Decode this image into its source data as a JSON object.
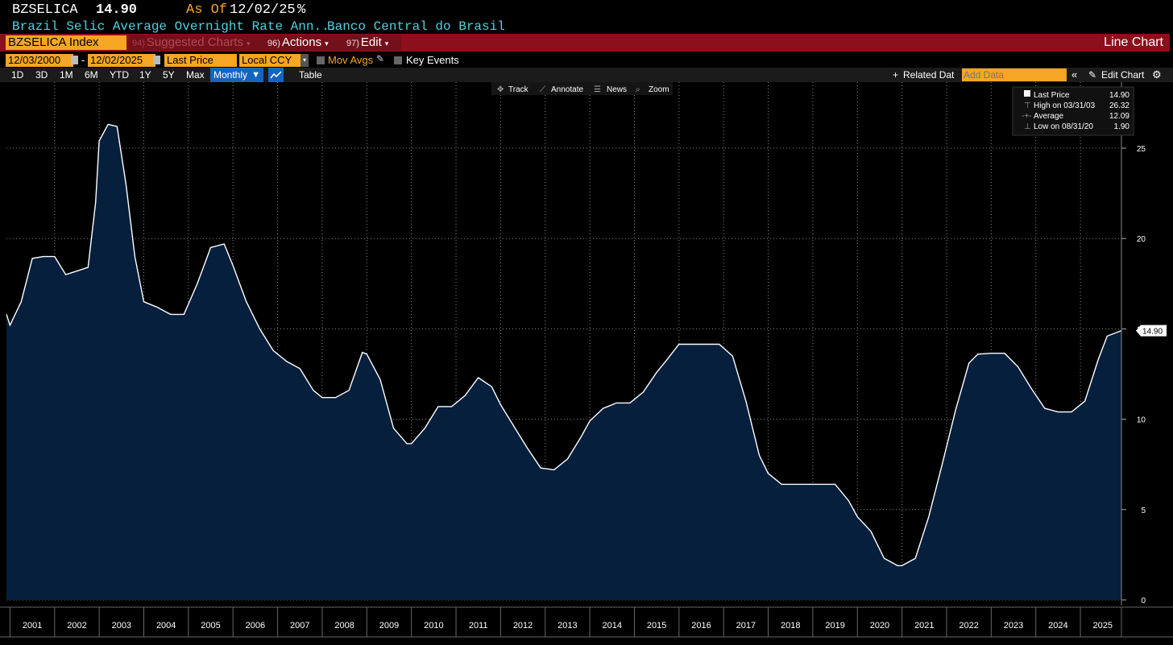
{
  "header": {
    "ticker": "BZSELICA",
    "price": "14.90",
    "as_of_label": "As Of",
    "as_of_date": "12/02/25",
    "unit": "%",
    "description": "Brazil Selic Average Overnight Rate Ann...",
    "source": "Banco Central do Brasil"
  },
  "toolbar": {
    "security": "BZSELICA Index",
    "suggested_charts": {
      "num": "94)",
      "label": "Suggested Charts"
    },
    "actions": {
      "num": "96)",
      "label": "Actions"
    },
    "edit": {
      "num": "97)",
      "label": "Edit"
    },
    "chart_type": "Line Chart"
  },
  "controls": {
    "start_date": "12/03/2000",
    "end_date": "12/02/2025",
    "date_sep": "-",
    "field": "Last Price",
    "currency": "Local CCY",
    "mov_avgs": "Mov Avgs",
    "key_events": "Key Events"
  },
  "periods": [
    "1D",
    "3D",
    "1M",
    "6M",
    "YTD",
    "1Y",
    "5Y",
    "Max"
  ],
  "frequency": "Monthly",
  "table_label": "Table",
  "related_data": "Related Dat",
  "add_data_placeholder": "Add Data",
  "edit_chart": "Edit Chart",
  "chart_tools": [
    "Track",
    "Annotate",
    "News",
    "Zoom"
  ],
  "legend": {
    "last_price": {
      "label": "Last Price",
      "value": "14.90"
    },
    "high": {
      "label": "High on 03/31/03",
      "value": "26.32"
    },
    "average": {
      "label": "Average",
      "value": "12.09"
    },
    "low": {
      "label": "Low on 08/31/20",
      "value": "1.90"
    }
  },
  "colors": {
    "accent_orange": "#f5a623",
    "menu_red": "#8c0f1c",
    "header_cyan": "#4fd2e0",
    "area_fill": "#061f3d",
    "line": "#ffffff"
  },
  "chart_data": {
    "type": "area",
    "x": [
      2000.92,
      2001.0,
      2001.25,
      2001.5,
      2001.75,
      2002.0,
      2002.25,
      2002.5,
      2002.75,
      2002.92,
      2003.0,
      2003.2,
      2003.4,
      2003.6,
      2003.8,
      2004.0,
      2004.3,
      2004.6,
      2004.9,
      2005.2,
      2005.5,
      2005.8,
      2006.0,
      2006.3,
      2006.6,
      2006.9,
      2007.2,
      2007.5,
      2007.8,
      2008.0,
      2008.3,
      2008.6,
      2008.9,
      2009.0,
      2009.3,
      2009.6,
      2009.9,
      2010.0,
      2010.3,
      2010.6,
      2010.9,
      2011.2,
      2011.5,
      2011.8,
      2012.0,
      2012.3,
      2012.6,
      2012.9,
      2013.2,
      2013.5,
      2013.8,
      2014.0,
      2014.3,
      2014.6,
      2014.9,
      2015.2,
      2015.5,
      2015.7,
      2016.0,
      2016.3,
      2016.6,
      2016.9,
      2017.2,
      2017.5,
      2017.8,
      2018.0,
      2018.3,
      2018.6,
      2018.9,
      2019.2,
      2019.5,
      2019.8,
      2020.0,
      2020.3,
      2020.6,
      2020.9,
      2021.0,
      2021.3,
      2021.6,
      2021.9,
      2022.2,
      2022.5,
      2022.7,
      2023.0,
      2023.3,
      2023.6,
      2023.9,
      2024.2,
      2024.5,
      2024.8,
      2025.1,
      2025.4,
      2025.6,
      2025.92
    ],
    "y": [
      15.8,
      15.2,
      16.5,
      18.9,
      19.0,
      19.0,
      18.0,
      18.2,
      18.4,
      22.0,
      25.4,
      26.32,
      26.2,
      23.0,
      19.0,
      16.5,
      16.2,
      15.8,
      15.8,
      17.5,
      19.5,
      19.7,
      18.5,
      16.5,
      15.0,
      13.8,
      13.2,
      12.8,
      11.6,
      11.2,
      11.2,
      11.6,
      13.7,
      13.6,
      12.2,
      9.5,
      8.65,
      8.65,
      9.5,
      10.7,
      10.7,
      11.3,
      12.3,
      11.8,
      10.8,
      9.6,
      8.4,
      7.3,
      7.2,
      7.8,
      9.0,
      9.9,
      10.6,
      10.9,
      10.9,
      11.5,
      12.6,
      13.2,
      14.15,
      14.15,
      14.15,
      14.15,
      13.5,
      11.0,
      8.0,
      7.0,
      6.4,
      6.4,
      6.4,
      6.4,
      6.4,
      5.5,
      4.6,
      3.8,
      2.3,
      1.9,
      1.9,
      2.3,
      4.6,
      7.5,
      10.5,
      13.1,
      13.6,
      13.65,
      13.65,
      12.9,
      11.7,
      10.6,
      10.4,
      10.4,
      11.0,
      13.3,
      14.6,
      14.9
    ],
    "ylim": [
      0,
      28
    ],
    "yticks": [
      0,
      5,
      10,
      15,
      20,
      25
    ],
    "xlabels": [
      "2001",
      "2002",
      "2003",
      "2004",
      "2005",
      "2006",
      "2007",
      "2008",
      "2009",
      "2010",
      "2011",
      "2012",
      "2013",
      "2014",
      "2015",
      "2016",
      "2017",
      "2018",
      "2019",
      "2020",
      "2021",
      "2022",
      "2023",
      "2024",
      "2025"
    ],
    "last_value_label": "14.90",
    "grid": true,
    "legend_position": "top-right"
  }
}
